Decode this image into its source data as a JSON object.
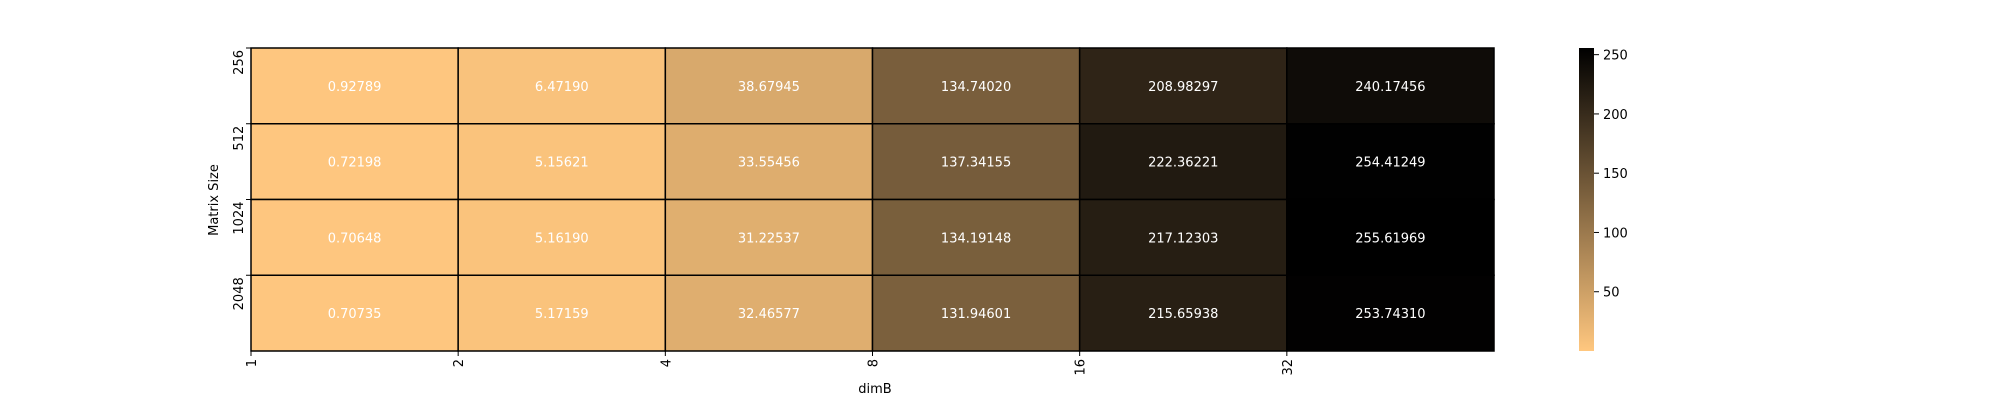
{
  "chart_data": {
    "type": "heatmap",
    "title": "",
    "xlabel": "dimB",
    "ylabel": "Matrix Size",
    "x_ticks": [
      "1",
      "2",
      "4",
      "8",
      "16",
      "32"
    ],
    "y_ticks": [
      "256",
      "512",
      "1024",
      "2048"
    ],
    "values": [
      [
        0.92789,
        6.4719,
        38.67945,
        134.7402,
        208.98297,
        240.17456
      ],
      [
        0.72198,
        5.15621,
        33.55456,
        137.34155,
        222.36221,
        254.41249
      ],
      [
        0.70648,
        5.1619,
        31.22537,
        134.19148,
        217.12303,
        255.61969
      ],
      [
        0.70735,
        5.17159,
        32.46577,
        131.94601,
        215.65938,
        253.7431
      ]
    ],
    "value_labels": [
      [
        "0.92789",
        "6.47190",
        "38.67945",
        "134.74020",
        "208.98297",
        "240.17456"
      ],
      [
        "0.72198",
        "5.15621",
        "33.55456",
        "137.34155",
        "222.36221",
        "254.41249"
      ],
      [
        "0.70648",
        "5.16190",
        "31.22537",
        "134.19148",
        "217.12303",
        "255.61969"
      ],
      [
        "0.70735",
        "5.17159",
        "32.46577",
        "131.94601",
        "215.65938",
        "253.74310"
      ]
    ],
    "colormap": "copper_r",
    "colormap_stops": [
      "#ffc77f",
      "#000000"
    ],
    "value_range": [
      0,
      255.62
    ],
    "colorbar_ticks": [
      "50",
      "100",
      "150",
      "200",
      "250"
    ],
    "colorbar_tick_values": [
      50,
      100,
      150,
      200,
      250
    ],
    "cell_text_color": "#ffffff",
    "cell_border_color": "#000000"
  }
}
